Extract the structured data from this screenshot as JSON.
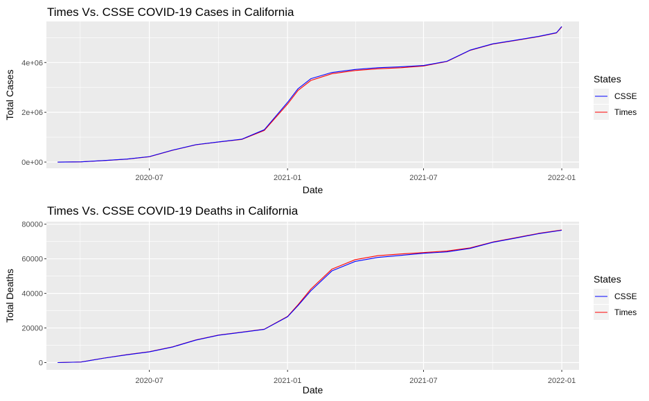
{
  "chart_data": [
    {
      "type": "line",
      "title": "Times Vs. CSSE COVID-19 Cases in California",
      "xlabel": "Date",
      "ylabel": "Total Cases",
      "x_ticks": [
        "2020-07",
        "2021-01",
        "2021-07",
        "2022-01"
      ],
      "y_ticks": [
        "0e+00",
        "2e+06",
        "4e+06"
      ],
      "ylim": [
        -250000,
        5650000
      ],
      "grid": true,
      "legend": {
        "title": "States",
        "position": "right",
        "entries": [
          "CSSE",
          "Times"
        ]
      },
      "series": [
        {
          "name": "CSSE",
          "color": "#0000ff",
          "x": [
            "2020-03-01",
            "2020-04-01",
            "2020-05-01",
            "2020-06-01",
            "2020-07-01",
            "2020-08-01",
            "2020-09-01",
            "2020-10-01",
            "2020-11-01",
            "2020-12-01",
            "2021-01-01",
            "2021-01-15",
            "2021-02-01",
            "2021-03-01",
            "2021-04-01",
            "2021-05-01",
            "2021-06-01",
            "2021-07-01",
            "2021-08-01",
            "2021-09-01",
            "2021-10-01",
            "2021-11-01",
            "2021-12-01",
            "2021-12-25",
            "2022-01-01"
          ],
          "values": [
            0,
            10000,
            60000,
            120000,
            220000,
            480000,
            700000,
            810000,
            920000,
            1300000,
            2400000,
            2950000,
            3350000,
            3600000,
            3720000,
            3790000,
            3830000,
            3880000,
            4050000,
            4500000,
            4750000,
            4900000,
            5050000,
            5200000,
            5450000
          ]
        },
        {
          "name": "Times",
          "color": "#ff0000",
          "x": [
            "2020-03-01",
            "2020-04-01",
            "2020-05-01",
            "2020-06-01",
            "2020-07-01",
            "2020-08-01",
            "2020-09-01",
            "2020-10-01",
            "2020-11-01",
            "2020-12-01",
            "2021-01-01",
            "2021-01-15",
            "2021-02-01",
            "2021-03-01",
            "2021-04-01",
            "2021-05-01",
            "2021-06-01",
            "2021-07-01",
            "2021-08-01",
            "2021-09-01",
            "2021-10-01",
            "2021-11-01",
            "2021-12-01",
            "2021-12-25",
            "2022-01-01"
          ],
          "values": [
            0,
            9000,
            58000,
            118000,
            215000,
            475000,
            695000,
            805000,
            910000,
            1270000,
            2330000,
            2880000,
            3280000,
            3550000,
            3680000,
            3750000,
            3790000,
            3860000,
            4040000,
            4490000,
            4740000,
            4890000,
            5040000,
            5190000,
            5430000
          ]
        }
      ]
    },
    {
      "type": "line",
      "title": "Times Vs. CSSE COVID-19 Deaths in California",
      "xlabel": "Date",
      "ylabel": "Total Deaths",
      "x_ticks": [
        "2020-07",
        "2021-01",
        "2021-07",
        "2022-01"
      ],
      "y_ticks": [
        "0",
        "20000",
        "40000",
        "60000",
        "80000"
      ],
      "ylim": [
        -4200,
        81500
      ],
      "grid": true,
      "legend": {
        "title": "States",
        "position": "right",
        "entries": [
          "CSSE",
          "Times"
        ]
      },
      "series": [
        {
          "name": "CSSE",
          "color": "#0000ff",
          "x": [
            "2020-03-01",
            "2020-04-01",
            "2020-05-01",
            "2020-06-01",
            "2020-07-01",
            "2020-08-01",
            "2020-09-01",
            "2020-10-01",
            "2020-11-01",
            "2020-12-01",
            "2021-01-01",
            "2021-01-15",
            "2021-02-01",
            "2021-03-01",
            "2021-04-01",
            "2021-05-01",
            "2021-06-01",
            "2021-07-01",
            "2021-08-01",
            "2021-09-01",
            "2021-10-01",
            "2021-11-01",
            "2021-12-01",
            "2022-01-01"
          ],
          "values": [
            0,
            300,
            2500,
            4500,
            6200,
            9000,
            13000,
            15800,
            17500,
            19200,
            26500,
            33000,
            41500,
            53000,
            58500,
            60800,
            62000,
            63200,
            64000,
            66000,
            69500,
            72000,
            74500,
            76500
          ]
        },
        {
          "name": "Times",
          "color": "#ff0000",
          "x": [
            "2020-03-01",
            "2020-04-01",
            "2020-05-01",
            "2020-06-01",
            "2020-07-01",
            "2020-08-01",
            "2020-09-01",
            "2020-10-01",
            "2020-11-01",
            "2020-12-01",
            "2021-01-01",
            "2021-01-15",
            "2021-02-01",
            "2021-03-01",
            "2021-04-01",
            "2021-05-01",
            "2021-06-01",
            "2021-07-01",
            "2021-08-01",
            "2021-09-01",
            "2021-10-01",
            "2021-11-01",
            "2021-12-01",
            "2022-01-01"
          ],
          "values": [
            0,
            320,
            2550,
            4600,
            6300,
            9100,
            13100,
            15900,
            17600,
            19300,
            26700,
            33500,
            42500,
            54000,
            59500,
            61800,
            62800,
            63600,
            64500,
            66300,
            69700,
            72200,
            74700,
            76700
          ]
        }
      ]
    }
  ]
}
